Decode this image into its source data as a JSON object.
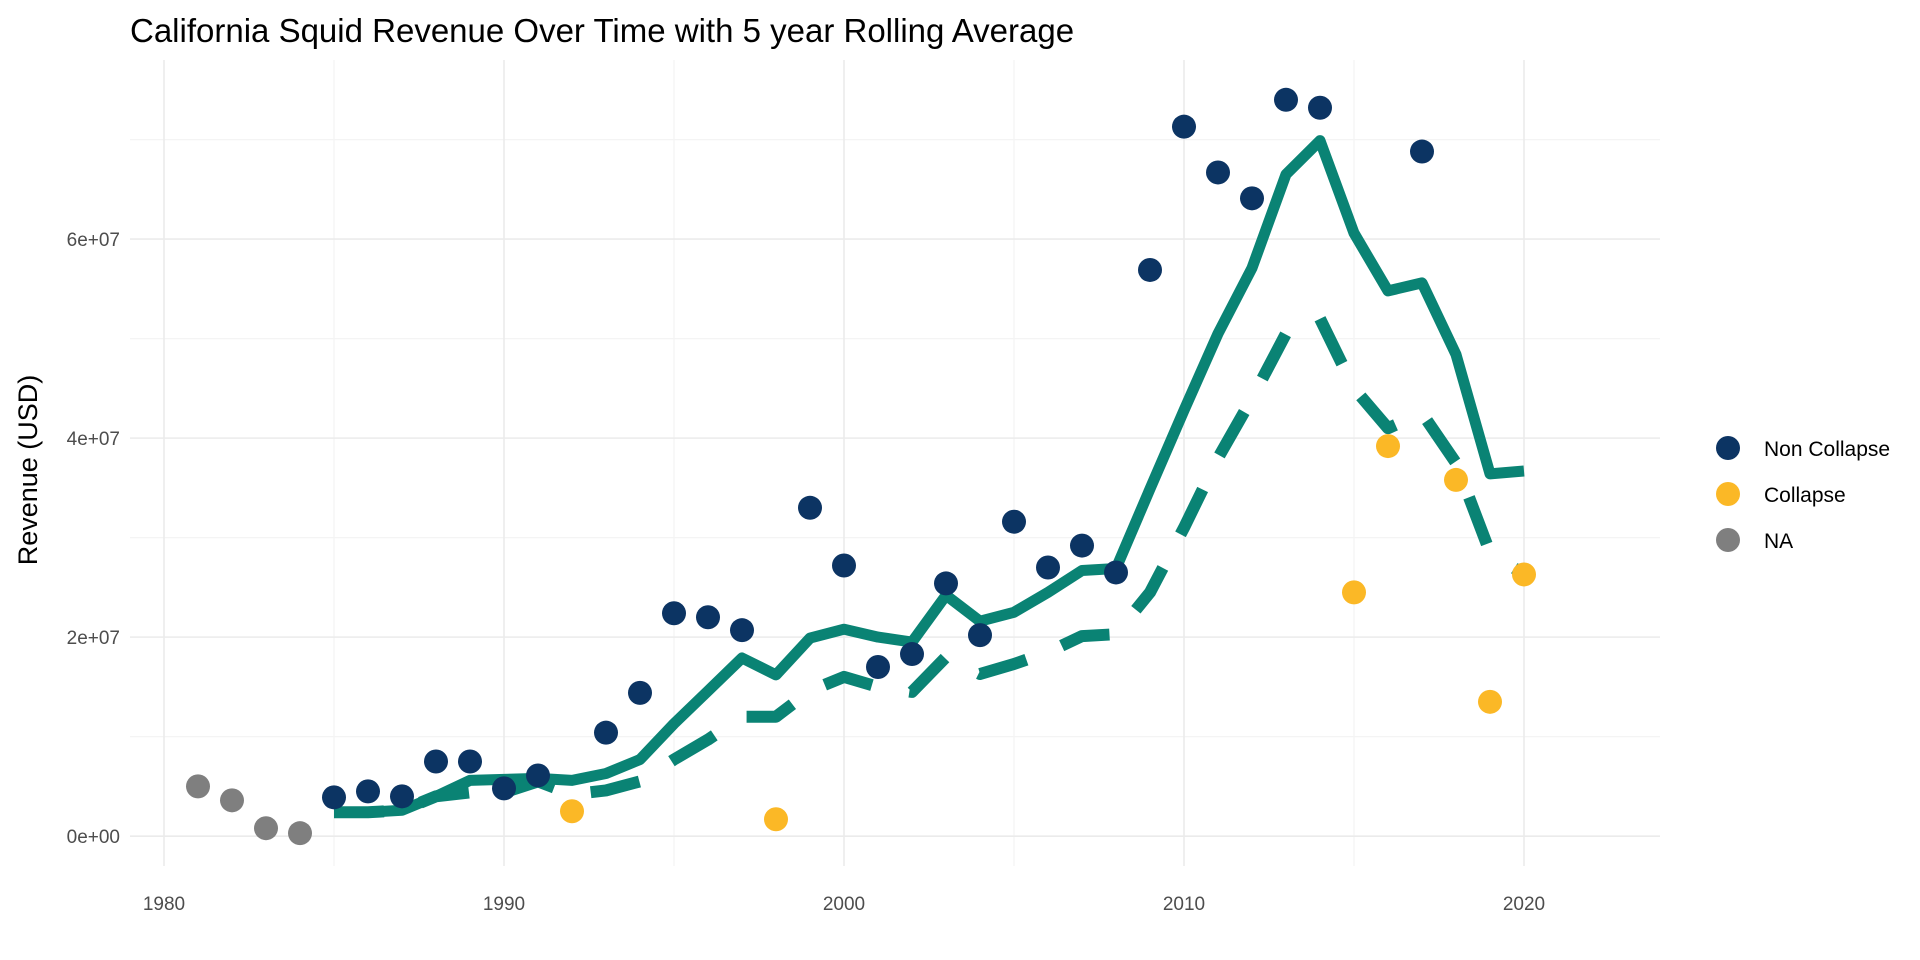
{
  "chart_data": {
    "type": "scatter",
    "title": "California Squid Revenue Over Time with 5 year Rolling Average",
    "xlabel": "",
    "ylabel": "Revenue (USD)",
    "xlim": [
      1979,
      2024
    ],
    "ylim": [
      -3000000,
      78000000
    ],
    "x_ticks": [
      1980,
      1990,
      2000,
      2010,
      2020
    ],
    "y_ticks": [
      0,
      20000000,
      40000000,
      60000000
    ],
    "y_tick_labels": [
      "0e+00",
      "2e+07",
      "4e+07",
      "6e+07"
    ],
    "grid": true,
    "legend_position": "right",
    "colors": {
      "Non Collapse": "#0c3463",
      "Collapse": "#fbb826",
      "NA": "#7f7f7f",
      "line": "#0a8374"
    },
    "legend": [
      "Non Collapse",
      "Collapse",
      "NA"
    ],
    "points": [
      {
        "year": 1981,
        "value": 5000000,
        "status": "NA"
      },
      {
        "year": 1982,
        "value": 3600000,
        "status": "NA"
      },
      {
        "year": 1983,
        "value": 800000,
        "status": "NA"
      },
      {
        "year": 1984,
        "value": 300000,
        "status": "NA"
      },
      {
        "year": 1985,
        "value": 3900000,
        "status": "Non Collapse"
      },
      {
        "year": 1986,
        "value": 4500000,
        "status": "Non Collapse"
      },
      {
        "year": 1987,
        "value": 4000000,
        "status": "Non Collapse"
      },
      {
        "year": 1988,
        "value": 7500000,
        "status": "Non Collapse"
      },
      {
        "year": 1989,
        "value": 7500000,
        "status": "Non Collapse"
      },
      {
        "year": 1990,
        "value": 4800000,
        "status": "Non Collapse"
      },
      {
        "year": 1991,
        "value": 6100000,
        "status": "Non Collapse"
      },
      {
        "year": 1992,
        "value": 2500000,
        "status": "Collapse"
      },
      {
        "year": 1993,
        "value": 10400000,
        "status": "Non Collapse"
      },
      {
        "year": 1994,
        "value": 14400000,
        "status": "Non Collapse"
      },
      {
        "year": 1995,
        "value": 22400000,
        "status": "Non Collapse"
      },
      {
        "year": 1996,
        "value": 22000000,
        "status": "Non Collapse"
      },
      {
        "year": 1997,
        "value": 20700000,
        "status": "Non Collapse"
      },
      {
        "year": 1998,
        "value": 1700000,
        "status": "Collapse"
      },
      {
        "year": 1999,
        "value": 33000000,
        "status": "Non Collapse"
      },
      {
        "year": 2000,
        "value": 27200000,
        "status": "Non Collapse"
      },
      {
        "year": 2001,
        "value": 17000000,
        "status": "Non Collapse"
      },
      {
        "year": 2002,
        "value": 18300000,
        "status": "Non Collapse"
      },
      {
        "year": 2003,
        "value": 25400000,
        "status": "Non Collapse"
      },
      {
        "year": 2004,
        "value": 20200000,
        "status": "Non Collapse"
      },
      {
        "year": 2005,
        "value": 31600000,
        "status": "Non Collapse"
      },
      {
        "year": 2006,
        "value": 27000000,
        "status": "Non Collapse"
      },
      {
        "year": 2007,
        "value": 29200000,
        "status": "Non Collapse"
      },
      {
        "year": 2008,
        "value": 26500000,
        "status": "Non Collapse"
      },
      {
        "year": 2009,
        "value": 56900000,
        "status": "Non Collapse"
      },
      {
        "year": 2010,
        "value": 71300000,
        "status": "Non Collapse"
      },
      {
        "year": 2011,
        "value": 66700000,
        "status": "Non Collapse"
      },
      {
        "year": 2012,
        "value": 64100000,
        "status": "Non Collapse"
      },
      {
        "year": 2013,
        "value": 74000000,
        "status": "Non Collapse"
      },
      {
        "year": 2014,
        "value": 73200000,
        "status": "Non Collapse"
      },
      {
        "year": 2015,
        "value": 24500000,
        "status": "Collapse"
      },
      {
        "year": 2016,
        "value": 39200000,
        "status": "Collapse"
      },
      {
        "year": 2017,
        "value": 68800000,
        "status": "Non Collapse"
      },
      {
        "year": 2018,
        "value": 35800000,
        "status": "Collapse"
      },
      {
        "year": 2019,
        "value": 13500000,
        "status": "Collapse"
      },
      {
        "year": 2020,
        "value": 26300000,
        "status": "Collapse"
      }
    ],
    "series": [
      {
        "style": "solid",
        "x": [
          1985,
          1986,
          1987,
          1988,
          1989,
          1990,
          1991,
          1992,
          1993,
          1994,
          1995,
          1996,
          1997,
          1998,
          1999,
          2000,
          2001,
          2002,
          2003,
          2004,
          2005,
          2006,
          2007,
          2008,
          2009,
          2010,
          2011,
          2012,
          2013,
          2014,
          2015,
          2016,
          2017,
          2018,
          2019,
          2020
        ],
        "values": [
          2400000,
          2400000,
          2600000,
          4000000,
          5600000,
          5700000,
          5800000,
          5600000,
          6300000,
          7700000,
          11300000,
          14600000,
          17900000,
          16200000,
          19900000,
          20800000,
          20000000,
          19500000,
          24200000,
          21600000,
          22500000,
          24500000,
          26700000,
          26900000,
          34900000,
          42800000,
          50500000,
          57100000,
          66500000,
          69900000,
          60600000,
          54800000,
          55600000,
          48400000,
          36400000,
          36700000
        ]
      },
      {
        "style": "dashed",
        "x": [
          1985,
          1986,
          1987,
          1988,
          1989,
          1990,
          1991,
          1992,
          1993,
          1994,
          1995,
          1996,
          1997,
          1998,
          1999,
          2000,
          2001,
          2002,
          2003,
          2004,
          2005,
          2006,
          2007,
          2008,
          2009,
          2010,
          2011,
          2012,
          2013,
          2014,
          2015,
          2016,
          2017,
          2018,
          2019,
          2020
        ],
        "values": [
          2400000,
          2400000,
          2600000,
          4000000,
          4400000,
          4400000,
          5500000,
          4200000,
          4600000,
          5500000,
          7700000,
          9700000,
          12000000,
          12000000,
          14600000,
          16000000,
          15000000,
          14500000,
          18000000,
          16300000,
          17300000,
          18500000,
          20100000,
          20300000,
          24500000,
          31000000,
          38000000,
          44000000,
          50500000,
          52000000,
          45000000,
          41000000,
          42500000,
          37500000,
          28500000,
          26300000
        ]
      }
    ]
  }
}
